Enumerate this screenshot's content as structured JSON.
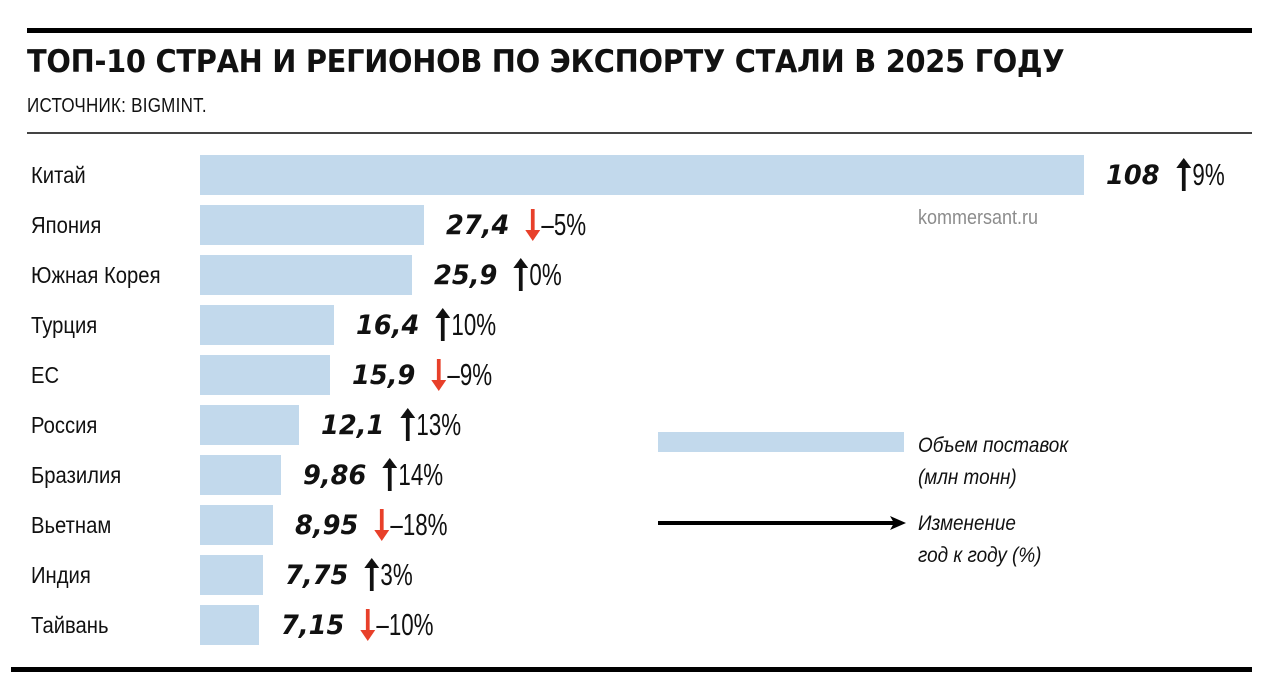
{
  "header": {
    "title": "ТОП-10 СТРАН И РЕГИОНОВ ПО ЭКСПОРТУ СТАЛИ В 2025 ГОДУ",
    "source": "ИСТОЧНИК: BIGMINT."
  },
  "watermark": "kommersant.ru",
  "legend": {
    "bar_label_line1": "Объем поставок",
    "bar_label_line2": "(млн тонн)",
    "arrow_label_line1": "Изменение",
    "arrow_label_line2": "год к году (%)"
  },
  "colors": {
    "bar": "#c2d9ec",
    "arrow_up": "#111111",
    "arrow_down": "#e8402a",
    "watermark": "#8c8c8c"
  },
  "rows": [
    {
      "label": "Китай",
      "value": "108",
      "change": "9%",
      "dir": "up"
    },
    {
      "label": "Япония",
      "value": "27,4",
      "change": "–5%",
      "dir": "down"
    },
    {
      "label": "Южная Корея",
      "value": "25,9",
      "change": "0%",
      "dir": "up"
    },
    {
      "label": "Турция",
      "value": "16,4",
      "change": "10%",
      "dir": "up"
    },
    {
      "label": "ЕС",
      "value": "15,9",
      "change": "–9%",
      "dir": "down"
    },
    {
      "label": "Россия",
      "value": "12,1",
      "change": "13%",
      "dir": "up"
    },
    {
      "label": "Бразилия",
      "value": "9,86",
      "change": "14%",
      "dir": "up"
    },
    {
      "label": "Вьетнам",
      "value": "8,95",
      "change": "–18%",
      "dir": "down"
    },
    {
      "label": "Индия",
      "value": "7,75",
      "change": "3%",
      "dir": "up"
    },
    {
      "label": "Тайвань",
      "value": "7,15",
      "change": "–10%",
      "dir": "down"
    }
  ],
  "chart_data": {
    "type": "bar",
    "orientation": "horizontal",
    "title": "ТОП-10 СТРАН И РЕГИОНОВ ПО ЭКСПОРТУ СТАЛИ В 2025 ГОДУ",
    "subtitle": "ИСТОЧНИК: BIGMINT.",
    "categories": [
      "Китай",
      "Япония",
      "Южная Корея",
      "Турция",
      "ЕС",
      "Россия",
      "Бразилия",
      "Вьетнам",
      "Индия",
      "Тайвань"
    ],
    "series": [
      {
        "name": "Объем поставок (млн тонн)",
        "values": [
          108,
          27.4,
          25.9,
          16.4,
          15.9,
          12.1,
          9.86,
          8.95,
          7.75,
          7.15
        ]
      },
      {
        "name": "Изменение год к году (%)",
        "values": [
          9,
          -5,
          0,
          10,
          -9,
          13,
          14,
          -18,
          3,
          -10
        ]
      }
    ],
    "xlabel": "",
    "ylabel": "",
    "grid": false,
    "legend_position": "right-bottom",
    "annotations": [
      "kommersant.ru"
    ]
  }
}
